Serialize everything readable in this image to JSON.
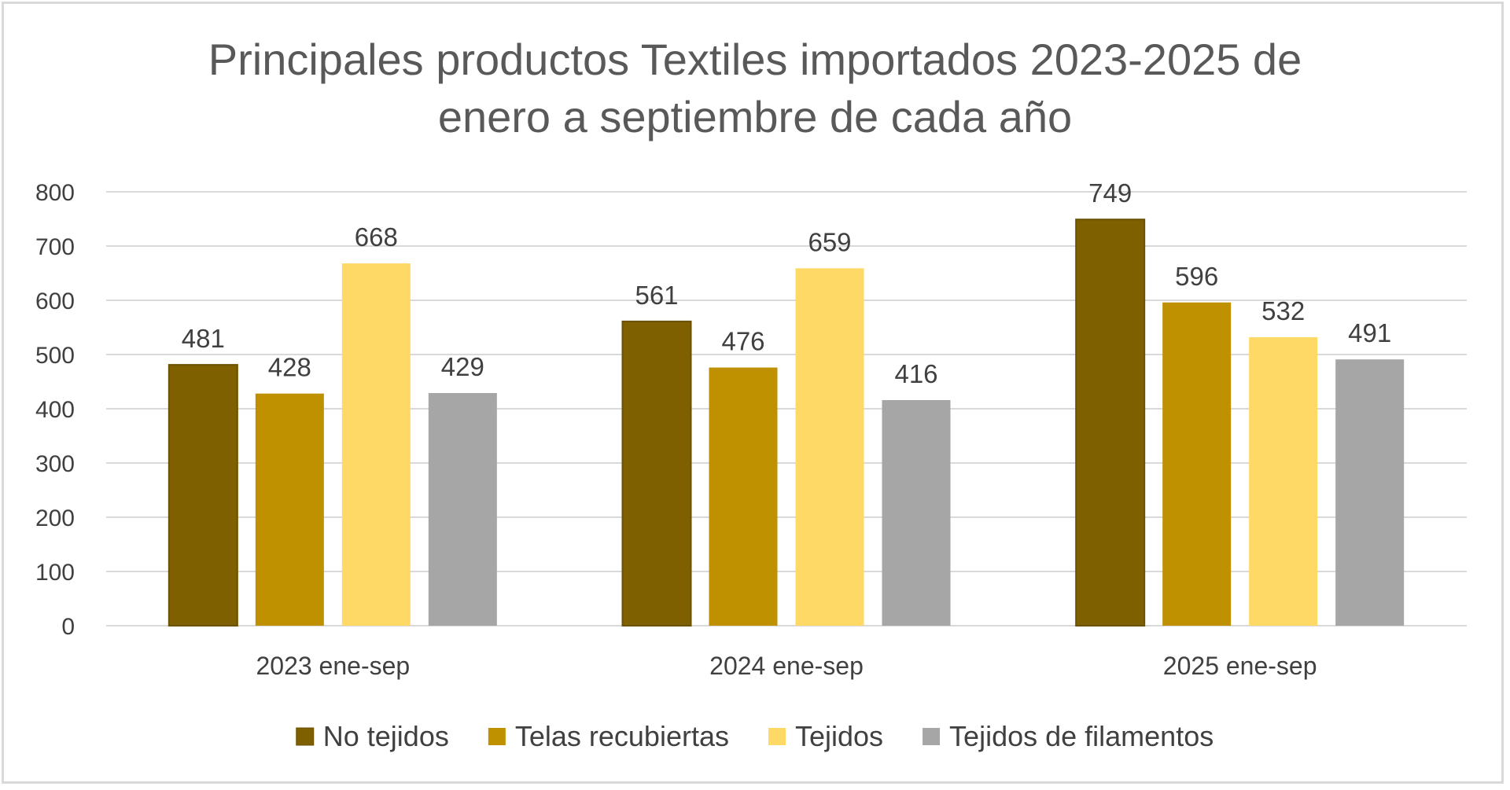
{
  "chart_data": {
    "type": "bar",
    "title_lines": [
      "Principales productos Textiles importados 2023-2025 de",
      "enero a septiembre de cada año"
    ],
    "categories": [
      "2023 ene-sep",
      "2024 ene-sep",
      "2025 ene-sep"
    ],
    "series": [
      {
        "name": "No tejidos",
        "color": "#7f6000",
        "values": [
          481,
          561,
          749
        ]
      },
      {
        "name": "Telas recubiertas",
        "color": "#bf9000",
        "values": [
          428,
          476,
          596
        ]
      },
      {
        "name": "Tejidos",
        "color": "#ffd966",
        "values": [
          668,
          659,
          532
        ]
      },
      {
        "name": "Tejidos de filamentos",
        "color": "#a6a6a6",
        "values": [
          429,
          416,
          491
        ]
      }
    ],
    "ylim": [
      0,
      800
    ],
    "yticks": [
      0,
      100,
      200,
      300,
      400,
      500,
      600,
      700,
      800
    ],
    "grid": true,
    "legend_position": "bottom",
    "xlabel": "",
    "ylabel": ""
  }
}
